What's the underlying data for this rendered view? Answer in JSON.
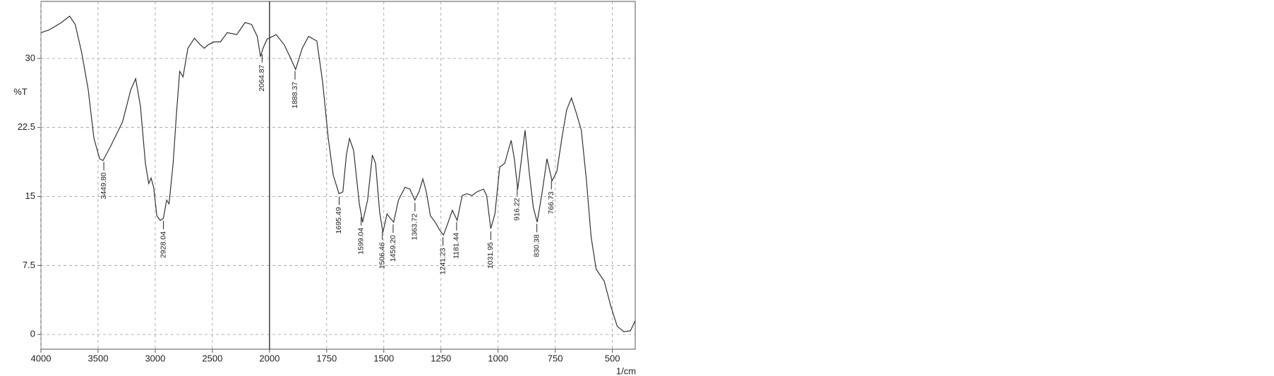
{
  "chart_data": {
    "type": "line",
    "y_label": "%T",
    "x_label": "1/cm",
    "x": [
      4000,
      3929,
      3821,
      3750,
      3700,
      3643,
      3586,
      3536,
      3486,
      3457,
      3393,
      3286,
      3214,
      3171,
      3129,
      3086,
      3057,
      3036,
      3014,
      2986,
      2957,
      2929,
      2900,
      2879,
      2843,
      2814,
      2786,
      2757,
      2714,
      2657,
      2607,
      2571,
      2536,
      2486,
      2429,
      2371,
      2286,
      2214,
      2157,
      2107,
      2079,
      2057,
      2021,
      1971,
      1936,
      1911,
      1886,
      1857,
      1829,
      1793,
      1768,
      1743,
      1721,
      1696,
      1679,
      1664,
      1650,
      1632,
      1607,
      1593,
      1571,
      1550,
      1536,
      1518,
      1504,
      1486,
      1471,
      1457,
      1436,
      1407,
      1386,
      1364,
      1346,
      1329,
      1314,
      1296,
      1275,
      1257,
      1239,
      1221,
      1200,
      1179,
      1157,
      1136,
      1114,
      1093,
      1064,
      1050,
      1032,
      1014,
      993,
      971,
      943,
      929,
      914,
      900,
      882,
      864,
      846,
      829,
      807,
      786,
      764,
      743,
      721,
      700,
      679,
      657,
      636,
      614,
      593,
      571,
      536,
      507,
      479,
      450,
      421,
      400
    ],
    "series": [
      {
        "color": "#333333",
        "values": [
          32.8,
          33.1,
          33.9,
          34.6,
          33.7,
          30.6,
          26.6,
          21.3,
          19.1,
          18.9,
          20.4,
          23.1,
          26.6,
          27.8,
          24.8,
          18.6,
          16.4,
          17.0,
          16.0,
          12.9,
          12.4,
          12.6,
          14.6,
          14.2,
          18.6,
          24.0,
          28.6,
          28.0,
          31.1,
          32.2,
          31.5,
          31.1,
          31.5,
          31.8,
          31.8,
          32.8,
          32.6,
          33.9,
          33.7,
          32.4,
          30.2,
          31.1,
          32.1,
          32.6,
          31.5,
          30.2,
          28.8,
          31.1,
          32.4,
          31.9,
          27.5,
          21.3,
          17.3,
          15.3,
          15.5,
          19.5,
          21.3,
          20.0,
          14.2,
          12.2,
          14.6,
          19.5,
          18.6,
          13.3,
          11.1,
          13.1,
          12.6,
          12.2,
          14.6,
          16.0,
          15.8,
          14.6,
          15.5,
          16.9,
          15.5,
          12.9,
          12.2,
          11.4,
          10.8,
          12.0,
          13.5,
          12.4,
          15.1,
          15.3,
          15.1,
          15.5,
          15.8,
          15.1,
          11.5,
          13.1,
          18.2,
          18.6,
          21.1,
          19.1,
          15.8,
          18.6,
          22.2,
          17.7,
          13.8,
          12.2,
          15.5,
          19.1,
          16.7,
          17.7,
          21.3,
          24.4,
          25.7,
          24.0,
          22.2,
          16.9,
          10.6,
          7.1,
          5.8,
          3.1,
          0.9,
          0.3,
          0.4,
          1.5
        ]
      }
    ],
    "peaks": {
      "x": [
        3449.8,
        2928.04,
        2064.87,
        1888.37,
        1695.49,
        1599.04,
        1506.46,
        1459.2,
        1363.72,
        1241.23,
        1181.44,
        1031.95,
        916.22,
        830.38,
        766.73
      ],
      "value_labels": [
        "3449.80",
        "2928.04",
        "2064.87",
        "1888.37",
        "1695.49",
        "1599.04",
        "1506.46",
        "1459.20",
        "1363.72",
        "1241.23",
        "1181.44",
        "1031.95",
        "916.22",
        "830.38",
        "766.73"
      ]
    },
    "xlim": [
      4000,
      400
    ],
    "x_break": 2000,
    "x_break_factor": 2,
    "xticks": [
      4000,
      3500,
      3000,
      2500,
      2000,
      1750,
      1500,
      1250,
      1000,
      750,
      500
    ],
    "ylim": [
      -1.6,
      36.2
    ],
    "yticks": [
      0,
      7.5,
      15,
      22.5,
      30
    ],
    "grid": true
  }
}
